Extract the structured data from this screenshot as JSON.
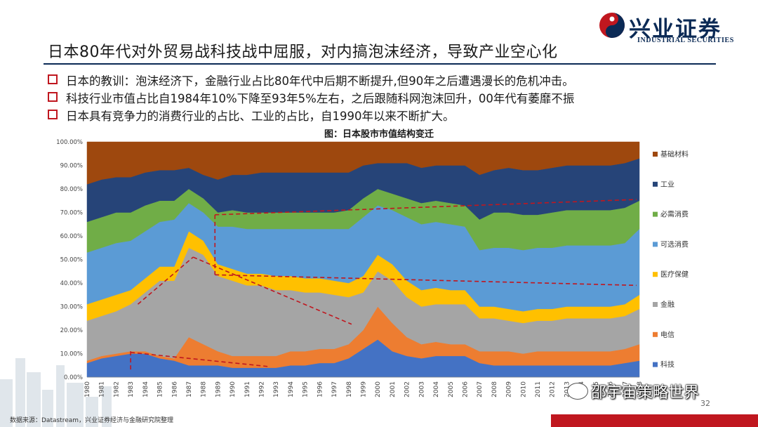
{
  "header": {
    "logo_text": "兴业证券",
    "logo_subtext": "INDUSTRIAL SECURITIES",
    "title": "日本80年代对外贸易战科技战中屈服，对内搞泡沫经济，导致产业空心化"
  },
  "bullets": [
    "日本的教训：泡沫经济下，金融行业占比80年代中后期不断提升,但90年之后遭遇漫长的危机冲击。",
    "科技行业市值占比自1984年10%下降至93年5%左右，之后跟随科网泡沫回升，00年代有萎靡不振",
    "日本具有竞争力的消费行业的占比、工业的占比，自1990年以来不断扩大。"
  ],
  "footer": {
    "source": "数据来源：Datastream，兴业证券经济与金融研究院整理",
    "page_number": "32",
    "watermark": "邵宇宙策略世界"
  },
  "colors": {
    "brand_navy": "#0b2a55",
    "brand_red": "#c0171f"
  },
  "chart_data": {
    "type": "area",
    "stacked": true,
    "title": "图：日本股市市值结构变迁",
    "x": [
      1980,
      1981,
      1982,
      1983,
      1984,
      1985,
      1986,
      1987,
      1988,
      1989,
      1990,
      1991,
      1992,
      1993,
      1994,
      1995,
      1996,
      1997,
      1998,
      1999,
      2000,
      2001,
      2002,
      2003,
      2004,
      2005,
      2006,
      2007,
      2008,
      2009,
      2010,
      2011,
      2012,
      2013,
      2014,
      2015,
      2016,
      2017,
      2018
    ],
    "x_tick_labels": [
      "1980",
      "1981",
      "1982",
      "1983",
      "1984",
      "1985",
      "1986",
      "1987",
      "1988",
      "1989",
      "1990",
      "1991",
      "1992",
      "1993",
      "1994",
      "1995",
      "1996",
      "1997",
      "1998",
      "1999",
      "2000",
      "2001",
      "2002",
      "2003",
      "2004",
      "2005",
      "2006",
      "2007",
      "2008",
      "2009",
      "2010",
      "2011",
      "2012",
      "2013",
      "2014",
      "2015",
      "2016",
      "2017",
      "2018"
    ],
    "ylim": [
      0,
      100
    ],
    "y_tick_labels": [
      "0.00%",
      "10.00%",
      "20.00%",
      "30.00%",
      "40.00%",
      "50.00%",
      "60.00%",
      "70.00%",
      "80.00%",
      "90.00%",
      "100.00%"
    ],
    "series": [
      {
        "name": "科技",
        "color": "#4472c4",
        "values": [
          6,
          8,
          9,
          10,
          10,
          8,
          7,
          5,
          5,
          5,
          4,
          4,
          4,
          4,
          5,
          5,
          6,
          6,
          8,
          12,
          16,
          11,
          9,
          8,
          9,
          9,
          9,
          6,
          5,
          5,
          5,
          5,
          5,
          5,
          5,
          5,
          5,
          6,
          7
        ]
      },
      {
        "name": "电信",
        "color": "#ed7d31",
        "values": [
          1,
          1,
          1,
          1,
          1,
          1,
          1,
          12,
          9,
          6,
          5,
          5,
          5,
          5,
          6,
          6,
          6,
          6,
          6,
          8,
          14,
          12,
          8,
          6,
          6,
          5,
          5,
          5,
          6,
          6,
          5,
          6,
          6,
          6,
          6,
          6,
          6,
          6,
          7
        ]
      },
      {
        "name": "金融",
        "color": "#a5a5a5",
        "values": [
          17,
          17,
          18,
          20,
          25,
          32,
          33,
          38,
          38,
          32,
          32,
          30,
          30,
          28,
          26,
          25,
          24,
          23,
          20,
          16,
          15,
          18,
          17,
          16,
          16,
          17,
          17,
          14,
          14,
          13,
          13,
          13,
          13,
          14,
          14,
          14,
          14,
          14,
          15
        ]
      },
      {
        "name": "医疗保健",
        "color": "#ffc000",
        "values": [
          7,
          7,
          7,
          6,
          6,
          6,
          6,
          7,
          6,
          5,
          5,
          5,
          5,
          6,
          6,
          6,
          6,
          6,
          6,
          7,
          7,
          7,
          7,
          7,
          7,
          6,
          6,
          5,
          5,
          5,
          5,
          5,
          5,
          5,
          5,
          5,
          5,
          5,
          6
        ]
      },
      {
        "name": "可选消费",
        "color": "#5b9bd5",
        "values": [
          22,
          22,
          22,
          21,
          20,
          19,
          20,
          12,
          12,
          16,
          18,
          19,
          19,
          20,
          20,
          21,
          21,
          22,
          23,
          25,
          21,
          23,
          27,
          28,
          28,
          28,
          27,
          24,
          25,
          26,
          26,
          26,
          26,
          26,
          26,
          26,
          26,
          26,
          28
        ]
      },
      {
        "name": "必需消费",
        "color": "#70ad47",
        "values": [
          13,
          13,
          13,
          12,
          11,
          9,
          8,
          6,
          6,
          6,
          7,
          7,
          7,
          7,
          7,
          7,
          7,
          7,
          8,
          8,
          7,
          7,
          8,
          9,
          9,
          9,
          9,
          13,
          15,
          15,
          15,
          14,
          15,
          15,
          15,
          15,
          15,
          15,
          12
        ]
      },
      {
        "name": "工业",
        "color": "#264478",
        "values": [
          16,
          16,
          15,
          15,
          14,
          13,
          13,
          9,
          10,
          14,
          15,
          16,
          17,
          17,
          17,
          17,
          17,
          17,
          16,
          14,
          11,
          13,
          15,
          15,
          15,
          16,
          17,
          19,
          18,
          19,
          19,
          19,
          19,
          19,
          19,
          19,
          19,
          19,
          18
        ]
      },
      {
        "name": "基础材料",
        "color": "#9e480e",
        "values": [
          18,
          16,
          15,
          15,
          13,
          12,
          12,
          11,
          14,
          16,
          14,
          14,
          13,
          13,
          13,
          13,
          13,
          13,
          13,
          10,
          9,
          9,
          9,
          11,
          10,
          10,
          10,
          14,
          12,
          11,
          12,
          12,
          11,
          10,
          10,
          10,
          10,
          9,
          7
        ]
      }
    ],
    "annotations": [
      {
        "type": "dashed-line",
        "color": "#c0171f",
        "from": [
          1983.5,
          31
        ],
        "to": [
          1987.3,
          51
        ]
      },
      {
        "type": "dashed-line",
        "color": "#c0171f",
        "from": [
          1987.3,
          51
        ],
        "to": [
          1998.2,
          22.5
        ]
      },
      {
        "type": "dashed-line",
        "color": "#c0171f",
        "from": [
          1988.8,
          69
        ],
        "to": [
          2017.8,
          75.5
        ]
      },
      {
        "type": "dashed-line",
        "color": "#c0171f",
        "from": [
          1988.8,
          69
        ],
        "to": [
          1988.8,
          43.5
        ]
      },
      {
        "type": "dashed-line",
        "color": "#c0171f",
        "from": [
          1988.8,
          43.5
        ],
        "to": [
          2017.8,
          39
        ]
      },
      {
        "type": "dashed-line",
        "color": "#c0171f",
        "from": [
          1983,
          11
        ],
        "to": [
          1983,
          3
        ]
      },
      {
        "type": "dashed-line",
        "color": "#c0171f",
        "from": [
          1983,
          10.5
        ],
        "to": [
          1992.5,
          4.5
        ]
      }
    ],
    "legend": {
      "position": "right",
      "order": [
        "基础材料",
        "工业",
        "必需消费",
        "可选消费",
        "医疗保健",
        "金融",
        "电信",
        "科技"
      ]
    }
  }
}
